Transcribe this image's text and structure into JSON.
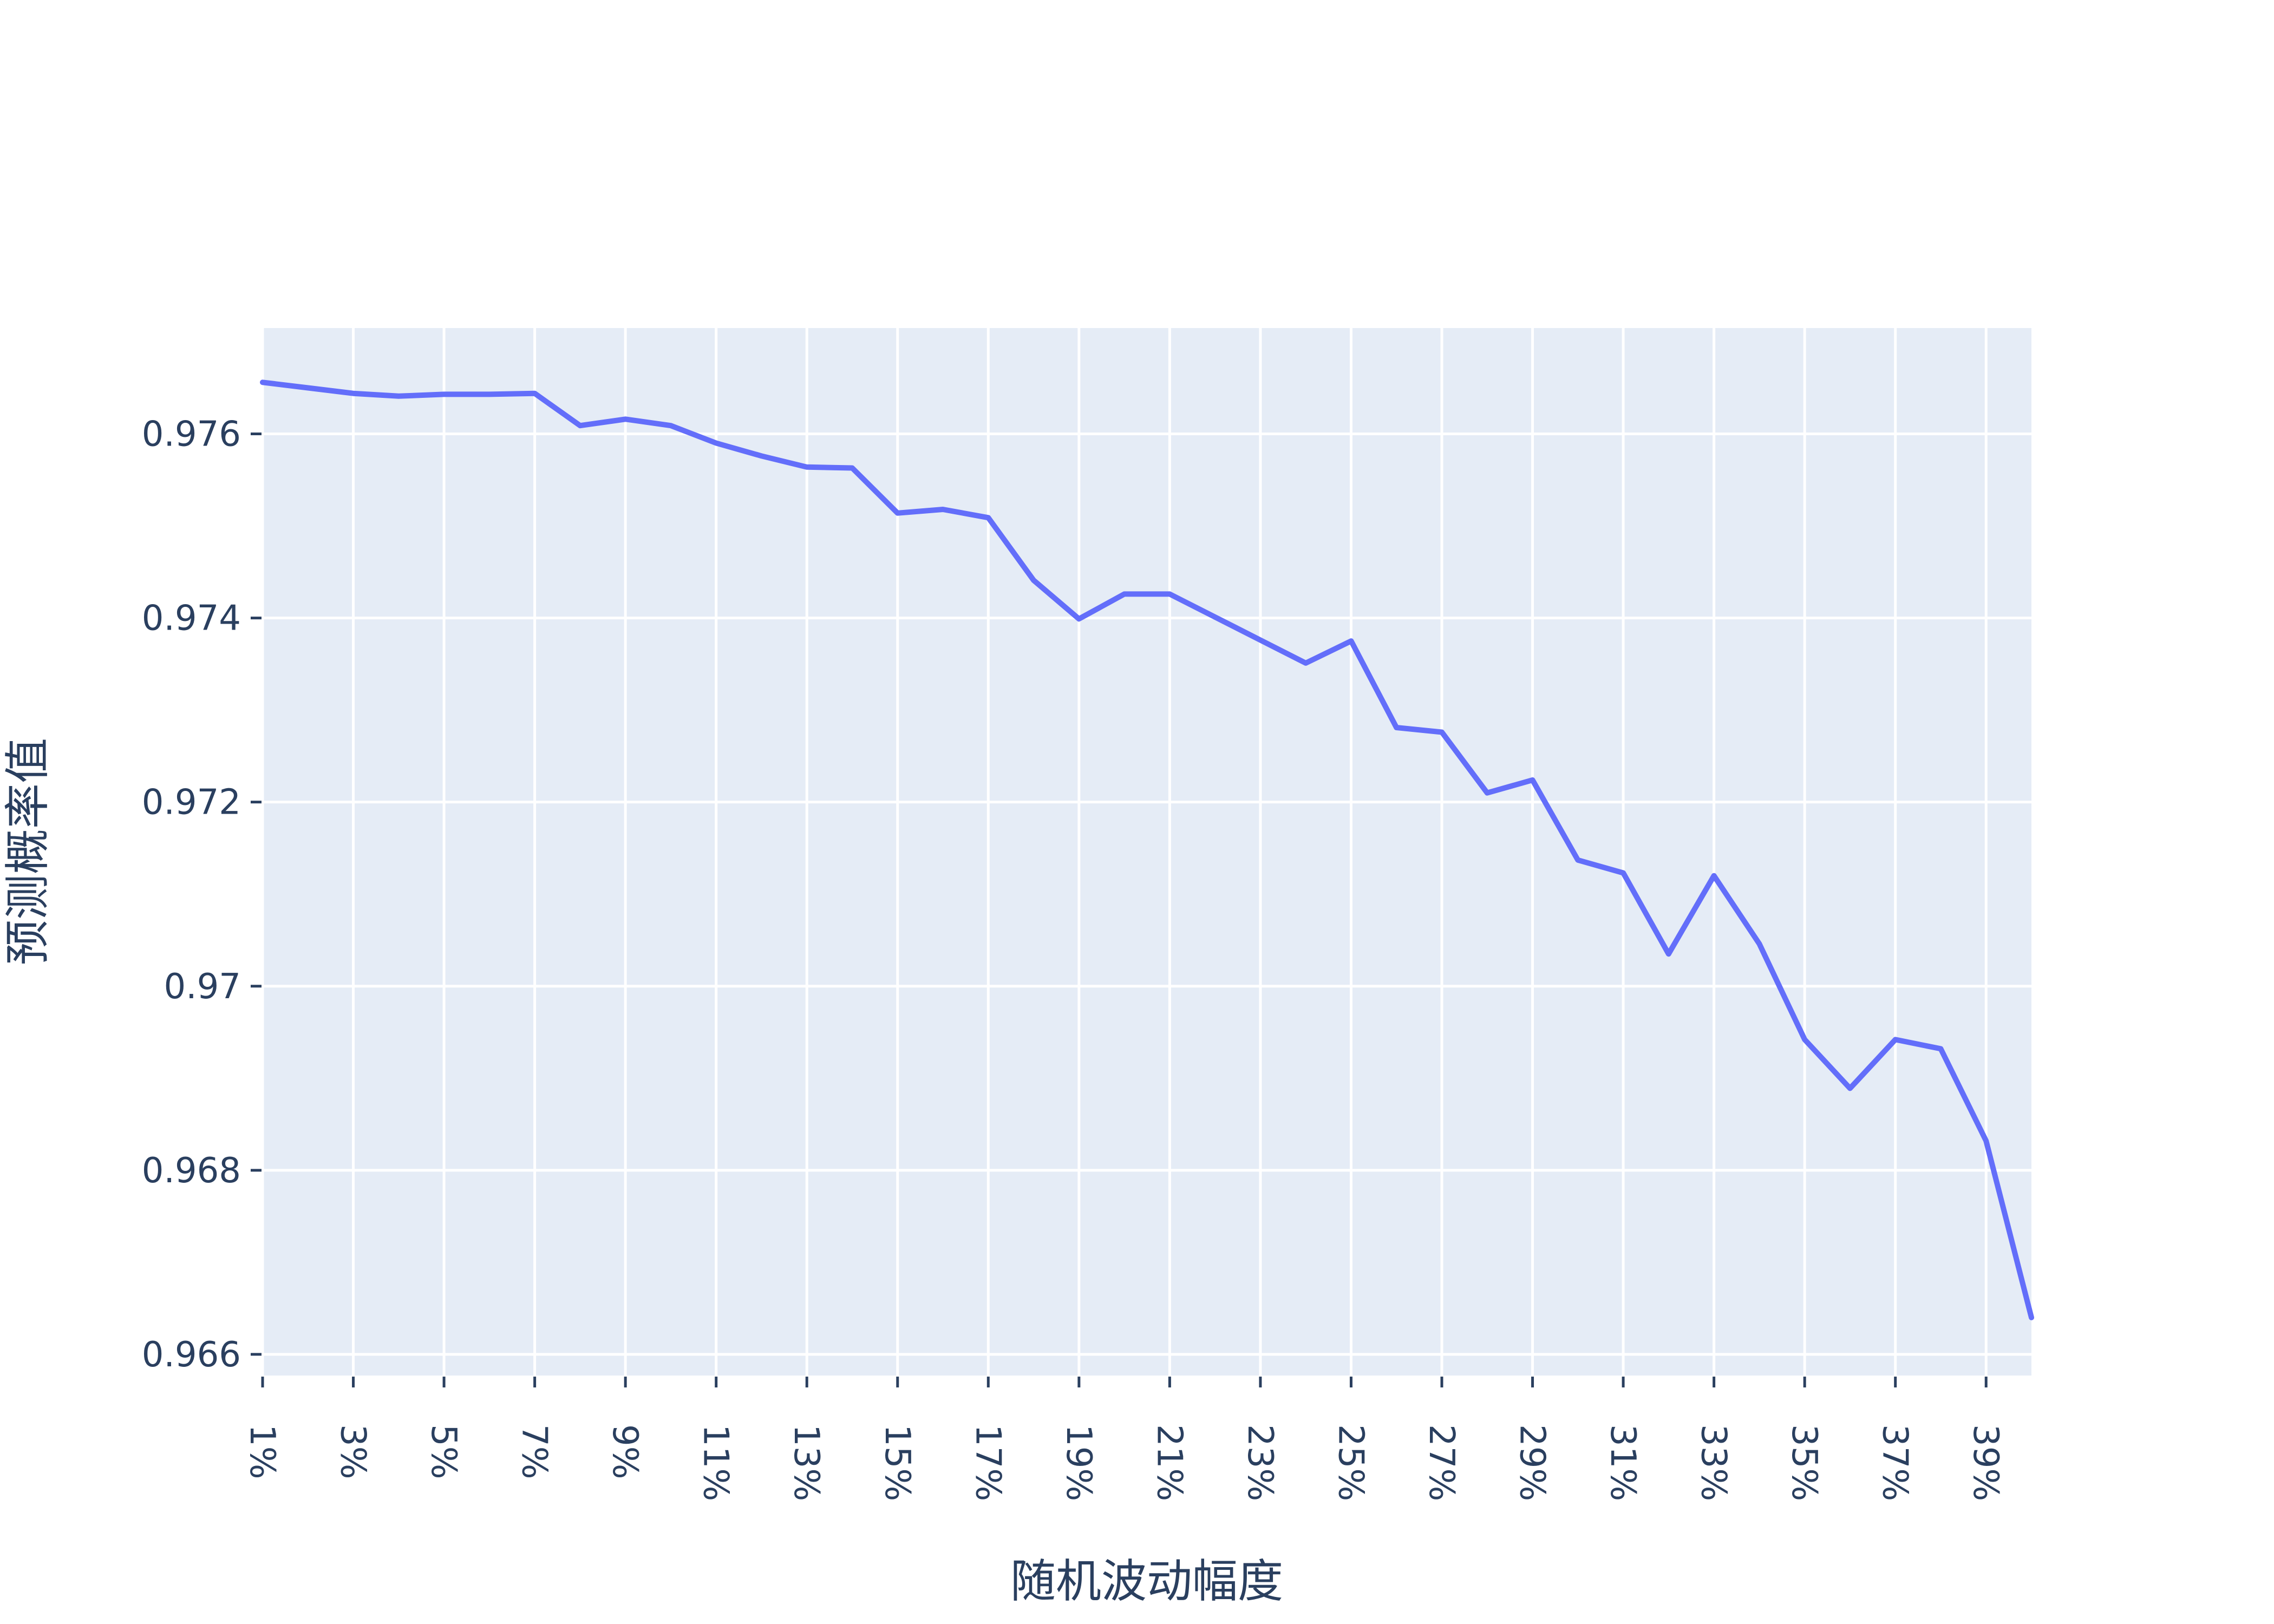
{
  "chart_data": {
    "type": "line",
    "title": "",
    "xlabel": "随机波动幅度",
    "ylabel": "预测概率值",
    "ylim": [
      0.96577,
      0.97715
    ],
    "y_ticks": [
      "0.966",
      "0.968",
      "0.97",
      "0.972",
      "0.974",
      "0.976"
    ],
    "y_tick_values": [
      0.966,
      0.968,
      0.97,
      0.972,
      0.974,
      0.976
    ],
    "x_ticks": [
      "1%",
      "3%",
      "5%",
      "7%",
      "9%",
      "11%",
      "13%",
      "15%",
      "17%",
      "19%",
      "21%",
      "23%",
      "25%",
      "27%",
      "29%",
      "31%",
      "33%",
      "35%",
      "37%",
      "39%"
    ],
    "x_tick_values": [
      1,
      3,
      5,
      7,
      9,
      11,
      13,
      15,
      17,
      19,
      21,
      23,
      25,
      27,
      29,
      31,
      33,
      35,
      37,
      39
    ],
    "xlim": [
      1,
      40
    ],
    "grid": true,
    "line_color": "#636efa",
    "plot_bg": "#e5ecf6",
    "series": [
      {
        "x": [
          1,
          2,
          3,
          4,
          5,
          6,
          7,
          8,
          9,
          10,
          11,
          12,
          13,
          14,
          15,
          16,
          17,
          18,
          19,
          20,
          21,
          22,
          23,
          24,
          25,
          26,
          27,
          28,
          29,
          30,
          31,
          32,
          33,
          34,
          35,
          36,
          37,
          38,
          39,
          40
        ],
        "values": [
          0.97656,
          0.9765,
          0.97644,
          0.97641,
          0.97643,
          0.97643,
          0.97644,
          0.97609,
          0.97616,
          0.97609,
          0.9759,
          0.97576,
          0.97564,
          0.97563,
          0.97514,
          0.97518,
          0.97509,
          0.97441,
          0.97399,
          0.97426,
          0.97426,
          0.97401,
          0.97376,
          0.97351,
          0.97375,
          0.97281,
          0.97276,
          0.9721,
          0.97224,
          0.97137,
          0.97123,
          0.97035,
          0.9712,
          0.97046,
          0.96942,
          0.96889,
          0.96942,
          0.96932,
          0.96832,
          0.9664
        ]
      }
    ]
  }
}
